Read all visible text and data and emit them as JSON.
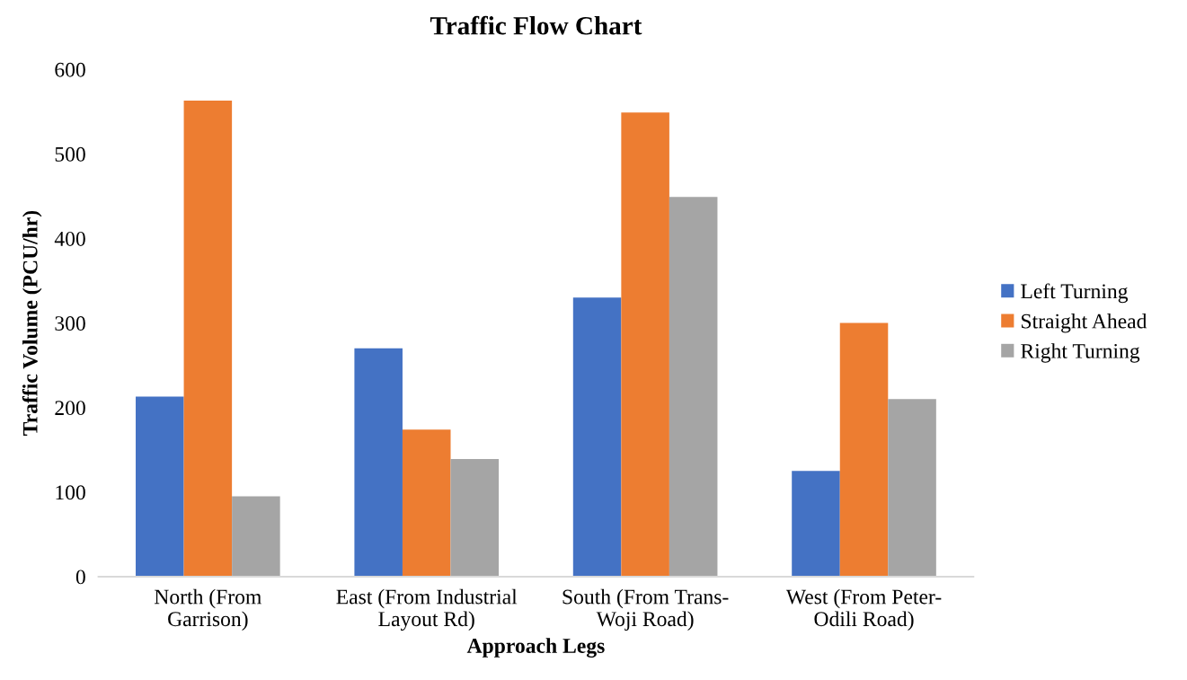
{
  "chart_data": {
    "type": "bar",
    "title": "Traffic Flow Chart",
    "xlabel": "Approach Legs",
    "ylabel": "Traffic Volume (PCU/hr)",
    "categories": [
      "North (From\nGarrison)",
      "East (From Industrial\nLayout Rd)",
      "South (From Trans-\nWoji Road)",
      "West (From Peter-\nOdili Road)"
    ],
    "series": [
      {
        "name": "Left Turning",
        "color": "#4472c4",
        "values": [
          213,
          270,
          330,
          125
        ]
      },
      {
        "name": "Straight Ahead",
        "color": "#ed7d31",
        "values": [
          563,
          174,
          549,
          300
        ]
      },
      {
        "name": "Right Turning",
        "color": "#a5a5a5",
        "values": [
          95,
          139,
          449,
          210
        ]
      }
    ],
    "ylim": [
      0,
      600
    ],
    "yticks": [
      0,
      100,
      200,
      300,
      400,
      500,
      600
    ],
    "grid": false,
    "legend": "right"
  }
}
